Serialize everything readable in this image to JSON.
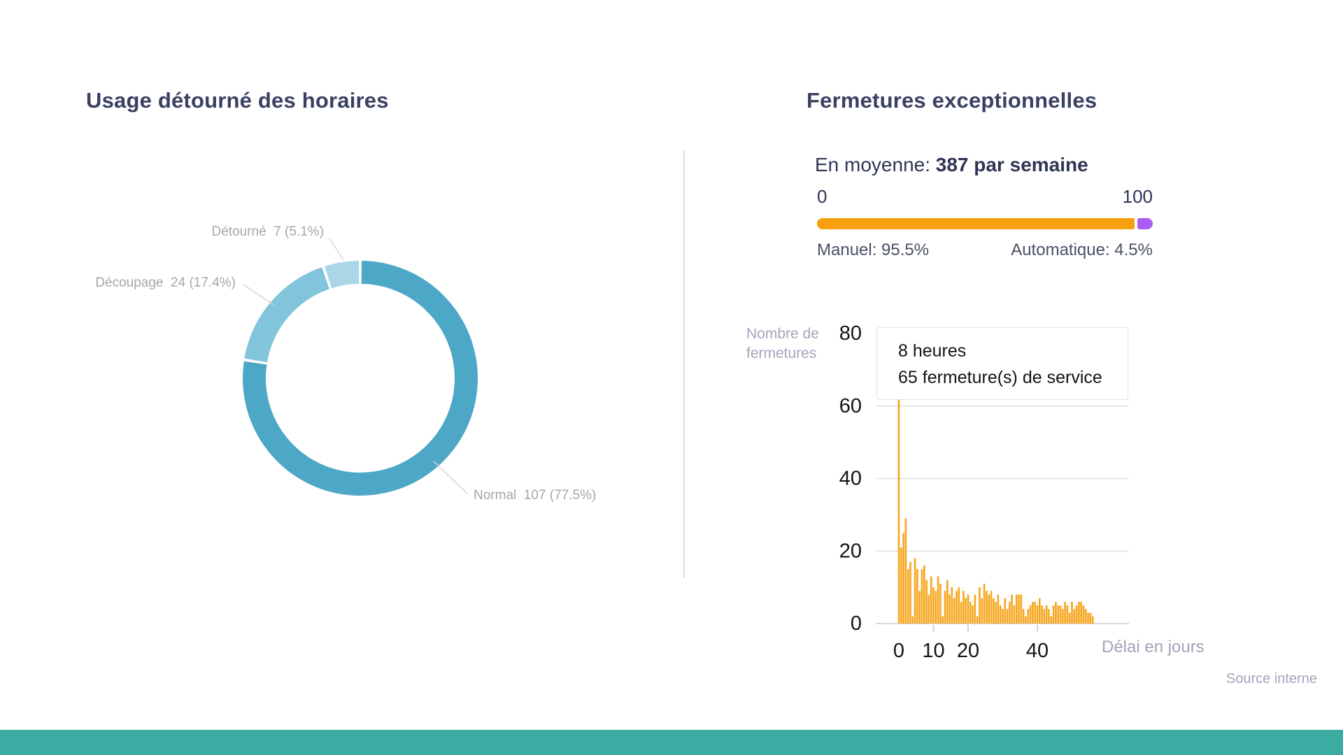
{
  "page": {
    "footer_color": "#3BACA2",
    "source_note": "Source interne"
  },
  "left_panel": {
    "title": "Usage détourné des horaires"
  },
  "right_panel": {
    "title": "Fermetures exceptionnelles",
    "average_prefix": "En moyenne: ",
    "average_value": "387 par semaine",
    "scale_min": "0",
    "scale_max": "100",
    "manual_label": "Manuel: 95.5%",
    "automatic_label": "Automatique: 4.5%",
    "manual_pct": 95.5,
    "automatic_pct": 4.5,
    "manual_color": "#F5A00C",
    "automatic_color": "#AB5CF5"
  },
  "chart_data": [
    {
      "type": "pie",
      "donut": true,
      "title": "Usage détourné des horaires",
      "legend_position": "callout-labels",
      "segments": [
        {
          "label": "Normal",
          "value": 107,
          "pct": 77.5,
          "color": "#4DA7C7",
          "text": "Normal  107 (77.5%)"
        },
        {
          "label": "Découpage",
          "value": 24,
          "pct": 17.4,
          "color": "#82C4DB",
          "text": "Découpage  24 (17.4%)"
        },
        {
          "label": "Détourné",
          "value": 7,
          "pct": 5.1,
          "color": "#ABD6E8",
          "text": "Détourné  7 (5.1%)"
        }
      ]
    },
    {
      "type": "bar",
      "title": "Fermetures exceptionnelles",
      "xlabel": "Délai en jours",
      "ylabel": "Nombre de fermetures",
      "ylabel_lines": [
        "Nombre de",
        "fermetures"
      ],
      "ylim": [
        0,
        80
      ],
      "yticks": [
        0,
        20,
        40,
        60,
        80
      ],
      "xticks": [
        0,
        10,
        20,
        40
      ],
      "grid": true,
      "bar_color": "#F6A51C",
      "x_days_per_bar": 0.667,
      "values": [
        65,
        21,
        25,
        29,
        15,
        17,
        2,
        18,
        15,
        9,
        15,
        16,
        12,
        8,
        13,
        10,
        9,
        13,
        11,
        2,
        9,
        12,
        8,
        10,
        7,
        9,
        10,
        6,
        9,
        7,
        8,
        6,
        5,
        8,
        2,
        10,
        7,
        11,
        9,
        8,
        9,
        7,
        6,
        8,
        5,
        4,
        7,
        4,
        6,
        8,
        5,
        8,
        8,
        8,
        4,
        2,
        4,
        5,
        6,
        6,
        5,
        7,
        5,
        4,
        5,
        4,
        2,
        5,
        6,
        5,
        5,
        4,
        6,
        5,
        3,
        6,
        4,
        5,
        6,
        6,
        5,
        4,
        3,
        3,
        2
      ],
      "tooltip": {
        "line1": "8 heures",
        "line2": "65 fermeture(s) de service"
      }
    }
  ]
}
